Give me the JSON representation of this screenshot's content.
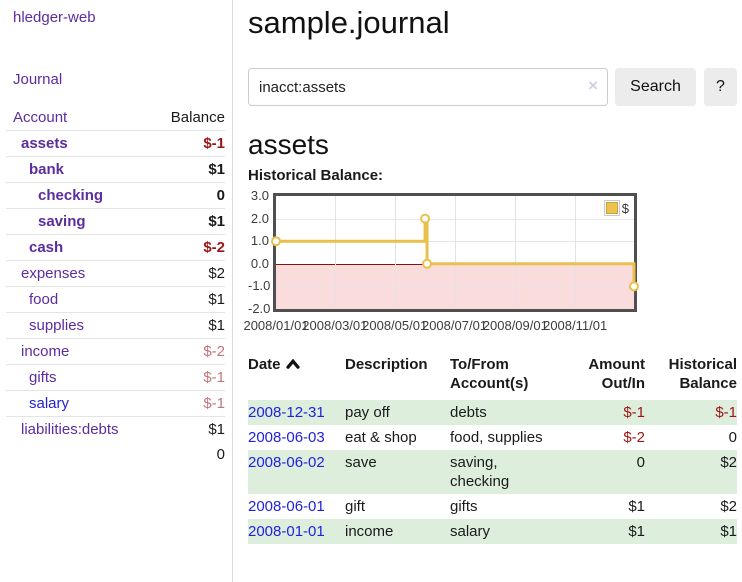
{
  "app": {
    "title": "hledger-web",
    "nav_journal": "Journal"
  },
  "sidebar": {
    "accounts_header": {
      "account": "Account",
      "balance": "Balance"
    },
    "accounts": [
      {
        "name": "assets",
        "balance": "$-1",
        "depth": 1,
        "bold": true,
        "balance_style": "neg-strong",
        "link_style": "purple"
      },
      {
        "name": "bank",
        "balance": "$1",
        "depth": 2,
        "bold": true,
        "balance_style": "pos",
        "link_style": "purple"
      },
      {
        "name": "checking",
        "balance": "0",
        "depth": 3,
        "bold": true,
        "balance_style": "pos",
        "link_style": "purple"
      },
      {
        "name": "saving",
        "balance": "$1",
        "depth": 3,
        "bold": true,
        "balance_style": "pos",
        "link_style": "purple"
      },
      {
        "name": "cash",
        "balance": "$-2",
        "depth": 2,
        "bold": true,
        "balance_style": "neg-strong",
        "link_style": "purple"
      },
      {
        "name": "expenses",
        "balance": "$2",
        "depth": 1,
        "bold": false,
        "balance_style": "pos",
        "link_style": "purple"
      },
      {
        "name": "food",
        "balance": "$1",
        "depth": 2,
        "bold": false,
        "balance_style": "pos",
        "link_style": "purple"
      },
      {
        "name": "supplies",
        "balance": "$1",
        "depth": 2,
        "bold": false,
        "balance_style": "pos",
        "link_style": "purple"
      },
      {
        "name": "income",
        "balance": "$-2",
        "depth": 1,
        "bold": false,
        "balance_style": "neg-muted",
        "link_style": "purple"
      },
      {
        "name": "gifts",
        "balance": "$-1",
        "depth": 2,
        "bold": false,
        "balance_style": "neg-muted",
        "link_style": "purple"
      },
      {
        "name": "salary",
        "balance": "$-1",
        "depth": 2,
        "bold": false,
        "balance_style": "neg-muted",
        "link_style": "blue"
      },
      {
        "name": "liabilities:debts",
        "balance": "$1",
        "depth": 1,
        "bold": false,
        "balance_style": "pos",
        "link_style": "purple"
      }
    ],
    "total": "0"
  },
  "header": {
    "title": "sample.journal"
  },
  "search": {
    "value": "inacct:assets",
    "clear_icon": "×",
    "button_label": "Search",
    "help_label": "?"
  },
  "account_page": {
    "heading": "assets",
    "chart_label": "Historical Balance:"
  },
  "chart_data": {
    "type": "line",
    "step": true,
    "title": "Historical Balance",
    "series": [
      {
        "name": "$",
        "color": "#e8c04b",
        "points": [
          [
            "2008-01-01",
            1
          ],
          [
            "2008-06-01",
            2
          ],
          [
            "2008-06-03",
            0
          ],
          [
            "2008-12-31",
            -1
          ]
        ]
      }
    ],
    "x_range": [
      "2008-01-01",
      "2008-12-31"
    ],
    "ylim": [
      -2,
      3
    ],
    "y_ticks": [
      "3.0",
      "2.0",
      "1.0",
      "0.0",
      "-1.0",
      "-2.0"
    ],
    "y_tick_values": [
      3,
      2,
      1,
      0,
      -1,
      -2
    ],
    "x_ticks": [
      "2008/01/01",
      "2008/03/01",
      "2008/05/01",
      "2008/07/01",
      "2008/09/01",
      "2008/11/01"
    ],
    "grid": true,
    "negative_region_color": "#fadcdc",
    "zero_line_color": "#8c1010",
    "legend": {
      "label": "$",
      "position": "top-right"
    }
  },
  "register": {
    "columns": {
      "date": "Date",
      "description": "Description",
      "accounts": "To/From Account(s)",
      "amount": "Amount Out/In",
      "balance": "Historical Balance"
    },
    "sort": {
      "column": "date",
      "direction": "asc"
    },
    "rows": [
      {
        "date": "2008-12-31",
        "description": "pay off",
        "accounts": "debts",
        "amount": "$-1",
        "amount_neg": true,
        "balance": "$-1",
        "balance_neg": true
      },
      {
        "date": "2008-06-03",
        "description": "eat & shop",
        "accounts": "food, supplies",
        "amount": "$-2",
        "amount_neg": true,
        "balance": "0",
        "balance_neg": false
      },
      {
        "date": "2008-06-02",
        "description": "save",
        "accounts": "saving, checking",
        "amount": "0",
        "amount_neg": false,
        "balance": "$2",
        "balance_neg": false
      },
      {
        "date": "2008-06-01",
        "description": "gift",
        "accounts": "gifts",
        "amount": "$1",
        "amount_neg": false,
        "balance": "$2",
        "balance_neg": false
      },
      {
        "date": "2008-01-01",
        "description": "income",
        "accounts": "salary",
        "amount": "$1",
        "amount_neg": false,
        "balance": "$1",
        "balance_neg": false
      }
    ]
  }
}
